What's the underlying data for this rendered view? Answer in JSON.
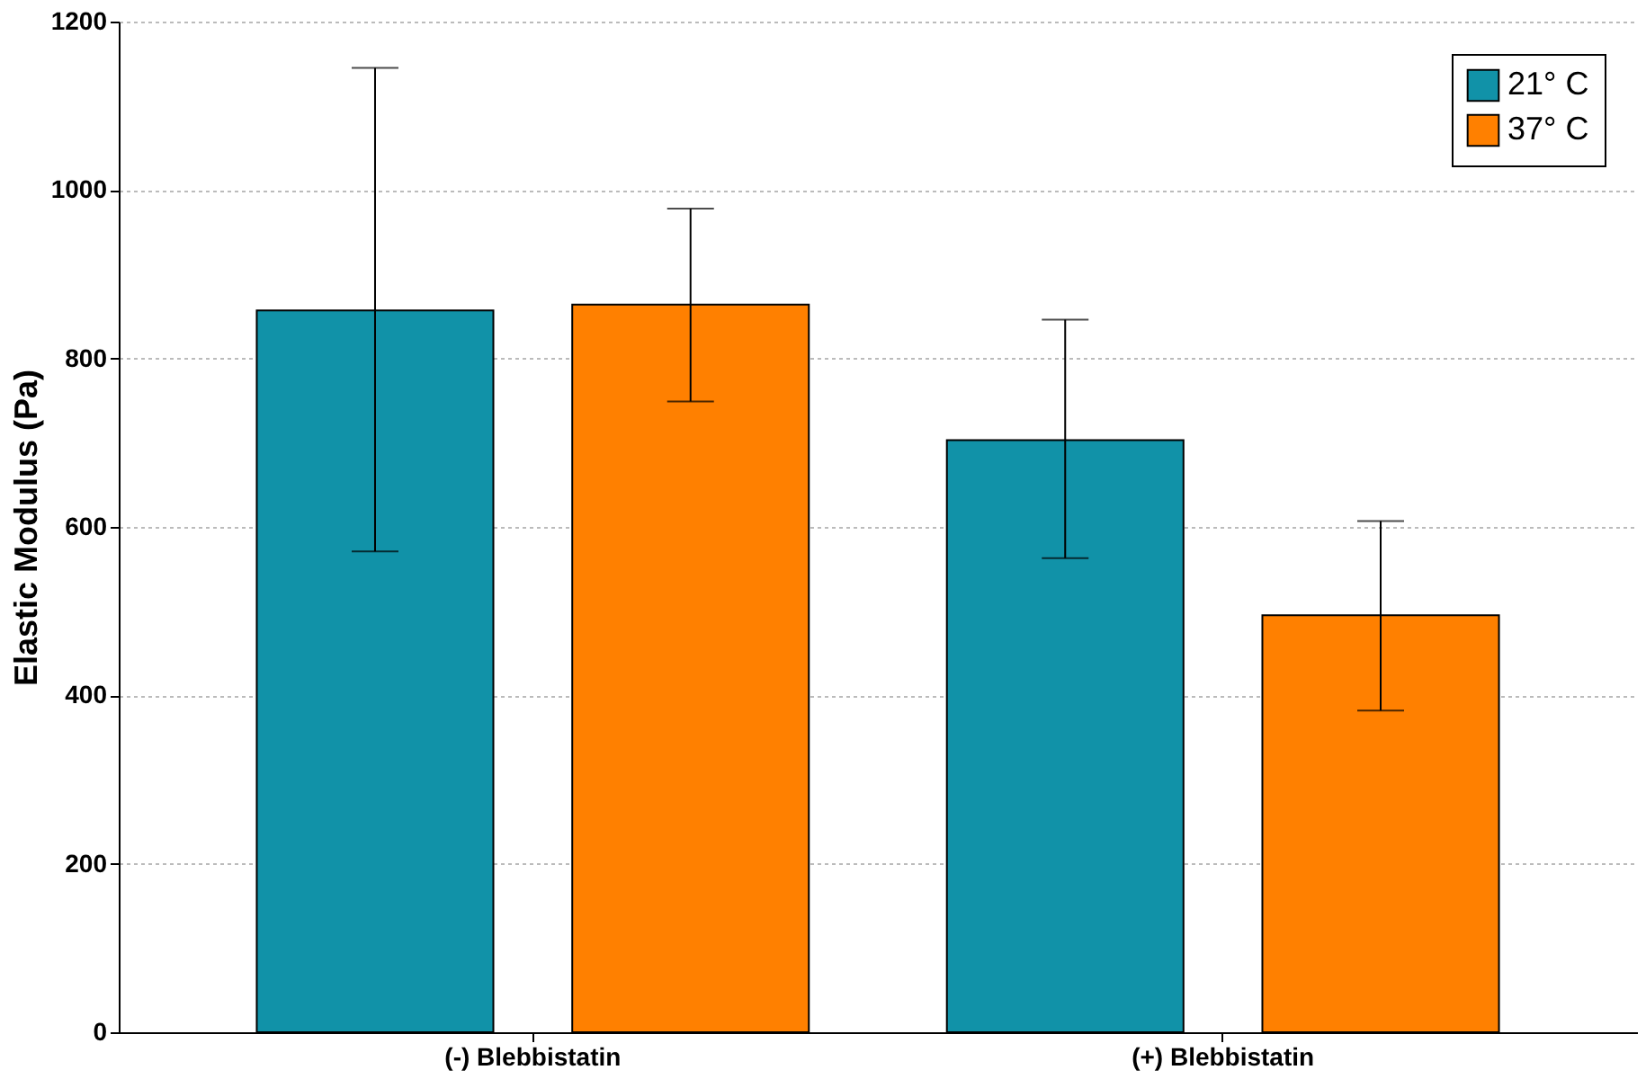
{
  "chart_data": {
    "type": "bar",
    "ylabel": "Elastic Modulus (Pa)",
    "categories": [
      "(-) Blebbistatin",
      "(+) Blebbistatin"
    ],
    "series": [
      {
        "name": "21° C",
        "color": "#1192a8",
        "values": [
          857,
          703
        ],
        "errors": [
          [
            571,
            1145
          ],
          [
            563,
            846
          ]
        ]
      },
      {
        "name": "37° C",
        "color": "#ff8000",
        "values": [
          864,
          495
        ],
        "errors": [
          [
            749,
            978
          ],
          [
            382,
            607
          ]
        ]
      }
    ],
    "ylim": [
      0,
      1200
    ],
    "yticks": [
      0,
      200,
      400,
      600,
      800,
      1000,
      1200
    ],
    "grid": "y",
    "legend": "top right"
  }
}
